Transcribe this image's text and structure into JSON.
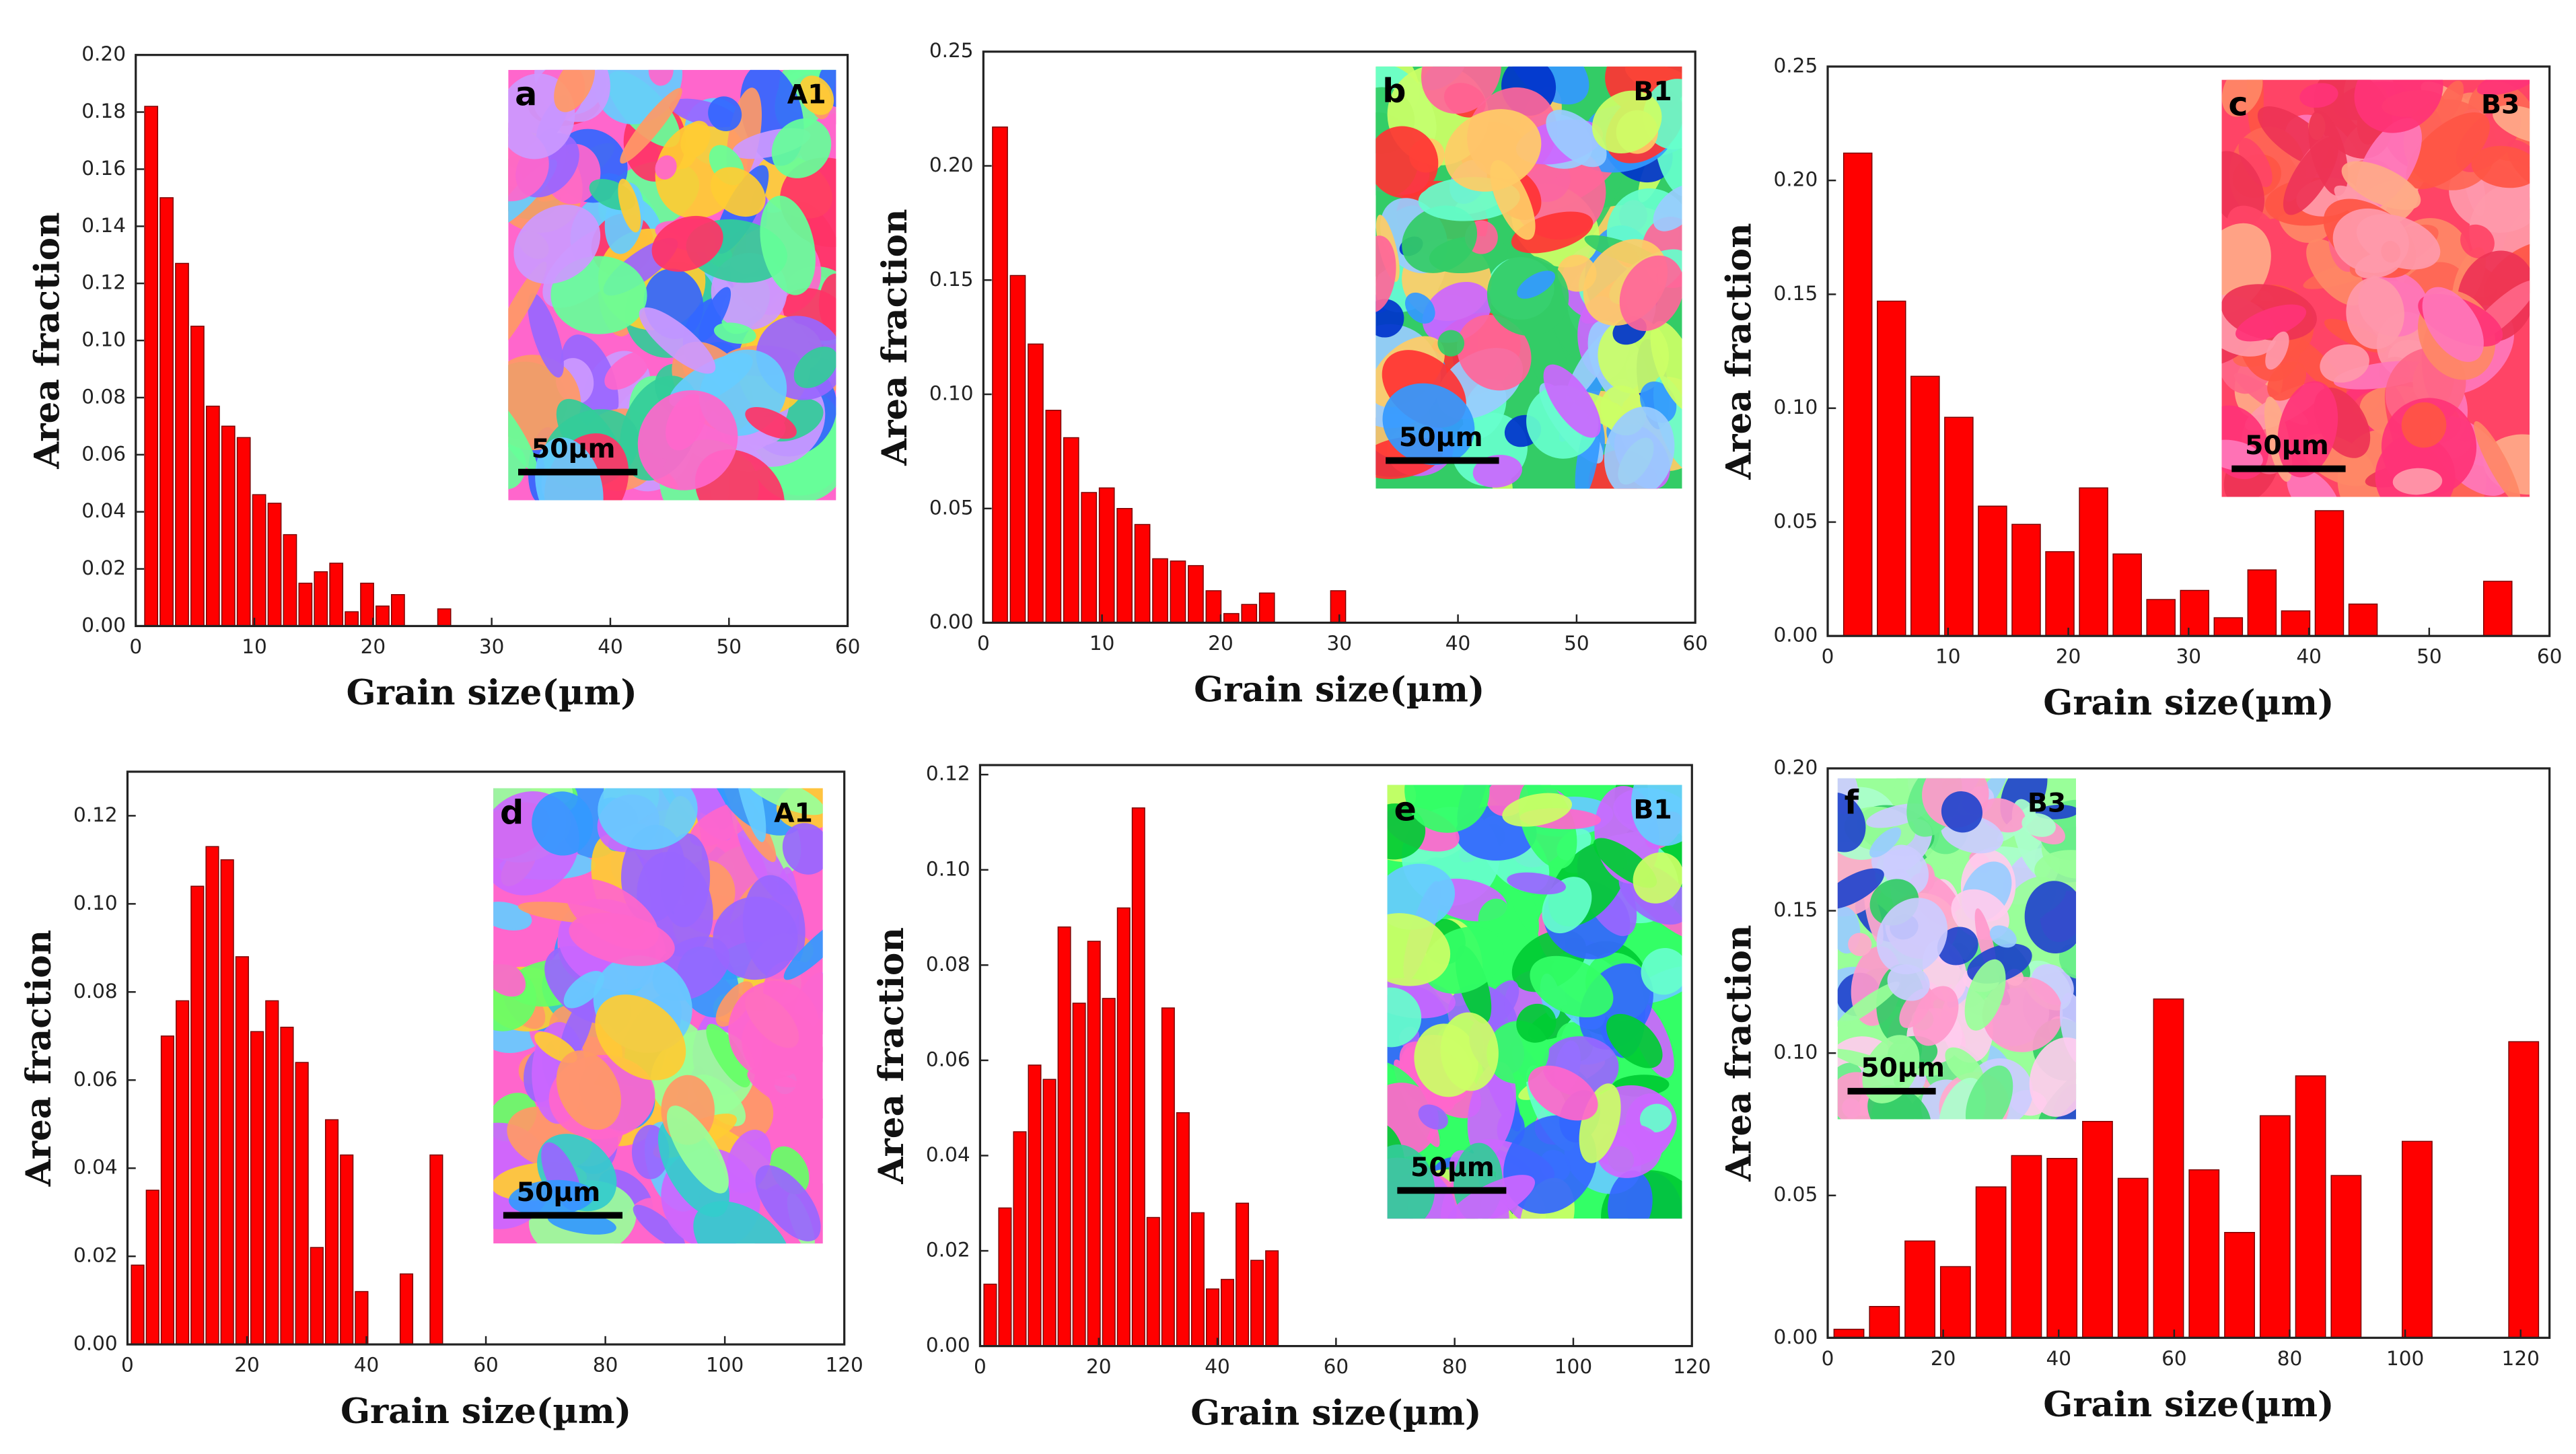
{
  "chart_data": [
    {
      "type": "histogram",
      "panel": "a",
      "inset_label": "A1",
      "scale_bar": "50µm",
      "xlabel": "Grain size(µm)",
      "ylabel": "Area fraction",
      "color": "#ff0000",
      "bins": [
        0.65,
        1.95,
        3.25,
        4.55,
        5.85,
        7.15,
        8.45,
        9.75,
        11.05,
        12.35,
        13.65,
        14.95,
        16.25,
        17.55,
        18.85,
        20.15,
        21.45,
        22.75,
        24.05,
        25.35,
        26.65
      ],
      "values": [
        0.182,
        0.15,
        0.127,
        0.105,
        0.077,
        0.07,
        0.066,
        0.046,
        0.043,
        0.032,
        0.015,
        0.019,
        0.022,
        0.005,
        0.015,
        0.007,
        0.011,
        0,
        0,
        0.006
      ],
      "xlim": [
        0,
        60
      ],
      "ylim": [
        0,
        0.2
      ],
      "xticks": [
        0,
        10,
        20,
        30,
        40,
        50,
        60
      ],
      "yticks": [
        {
          "value": 0,
          "label": "0.00"
        },
        0.02,
        0.04,
        0.06,
        0.08,
        {
          "value": 0.1,
          "label": "0.10"
        },
        0.12,
        0.14,
        0.16,
        0.18,
        {
          "value": 0.2,
          "label": "0.20"
        }
      ]
    },
    {
      "type": "histogram",
      "panel": "b",
      "inset_label": "B1",
      "scale_bar": "50µm",
      "xlabel": "Grain size(µm)",
      "ylabel": "Area fraction",
      "color": "#ff0000",
      "bins": [
        0.65,
        2.15,
        3.65,
        5.15,
        6.65,
        8.15,
        9.65,
        11.15,
        12.65,
        14.15,
        15.65,
        17.15,
        18.65,
        20.15,
        21.65,
        23.15,
        24.65,
        26.15,
        27.65,
        29.15,
        30.65
      ],
      "values": [
        0.217,
        0.152,
        0.122,
        0.093,
        0.081,
        0.057,
        0.059,
        0.05,
        0.043,
        0.028,
        0.027,
        0.025,
        0.014,
        0.004,
        0.008,
        0.013,
        0,
        0,
        0,
        0.014
      ],
      "xlim": [
        0,
        60
      ],
      "ylim": [
        0,
        0.25
      ],
      "xticks": [
        0,
        10,
        20,
        30,
        40,
        50,
        60
      ],
      "yticks": [
        {
          "value": 0,
          "label": "0.00"
        },
        0.05,
        {
          "value": 0.1,
          "label": "0.10"
        },
        0.15,
        {
          "value": 0.2,
          "label": "0.20"
        },
        0.25
      ]
    },
    {
      "type": "histogram",
      "panel": "c",
      "inset_label": "B3",
      "scale_bar": "50µm",
      "xlabel": "Grain size(µm)",
      "ylabel": "Area fraction",
      "color": "#ff0000",
      "bins": [
        1.1,
        3.9,
        6.7,
        9.5,
        12.3,
        15.1,
        17.9,
        20.7,
        23.5,
        26.3,
        29.1,
        31.9,
        34.7,
        37.5,
        40.3,
        43.1,
        45.9,
        48.7,
        51.5,
        54.3,
        57.1
      ],
      "values": [
        0.212,
        0.147,
        0.114,
        0.096,
        0.057,
        0.049,
        0.037,
        0.065,
        0.036,
        0.016,
        0.02,
        0.008,
        0.029,
        0.011,
        0.055,
        0.014,
        0,
        0,
        0,
        0.024
      ],
      "xlim": [
        0,
        60
      ],
      "ylim": [
        0,
        0.25
      ],
      "xticks": [
        0,
        10,
        20,
        30,
        40,
        50,
        60
      ],
      "yticks": [
        {
          "value": 0,
          "label": "0.00"
        },
        0.05,
        {
          "value": 0.1,
          "label": "0.10"
        },
        0.15,
        {
          "value": 0.2,
          "label": "0.20"
        },
        0.25
      ]
    },
    {
      "type": "histogram",
      "panel": "d",
      "inset_label": "A1",
      "scale_bar": "50µm",
      "xlabel": "Grain size(µm)",
      "ylabel": "Area fraction",
      "color": "#ff0000",
      "bins": [
        0.45,
        2.95,
        5.45,
        7.95,
        10.45,
        12.95,
        15.45,
        17.95,
        20.45,
        22.95,
        25.45,
        27.95,
        30.45,
        32.95,
        35.45,
        37.95,
        40.45,
        42.95,
        45.45,
        47.95,
        50.45,
        52.95
      ],
      "values": [
        0.018,
        0.035,
        0.07,
        0.078,
        0.104,
        0.113,
        0.11,
        0.088,
        0.071,
        0.078,
        0.072,
        0.064,
        0.022,
        0.051,
        0.043,
        0.012,
        0,
        0,
        0.016,
        0,
        0.043
      ],
      "xlim": [
        0,
        120
      ],
      "ylim": [
        0,
        0.13
      ],
      "xticks": [
        0,
        20,
        40,
        60,
        80,
        100,
        120
      ],
      "yticks": [
        {
          "value": 0,
          "label": "0.00"
        },
        0.02,
        0.04,
        0.06,
        0.08,
        {
          "value": 0.1,
          "label": "0.10"
        },
        0.12
      ]
    },
    {
      "type": "histogram",
      "panel": "e",
      "inset_label": "B1",
      "scale_bar": "50µm",
      "xlabel": "Grain size(µm)",
      "ylabel": "Area fraction",
      "color": "#ff0000",
      "bins": [
        0.45,
        2.95,
        5.45,
        7.95,
        10.45,
        12.95,
        15.45,
        17.95,
        20.45,
        22.95,
        25.45,
        27.95,
        30.45,
        32.95,
        35.45,
        37.95,
        40.45,
        42.95,
        45.45,
        47.95,
        50.45
      ],
      "values": [
        0.013,
        0.029,
        0.045,
        0.059,
        0.056,
        0.088,
        0.072,
        0.085,
        0.073,
        0.092,
        0.113,
        0.027,
        0.071,
        0.049,
        0.028,
        0.012,
        0.014,
        0.03,
        0.018,
        0.02
      ],
      "xlim": [
        0,
        120
      ],
      "ylim": [
        0,
        0.122
      ],
      "xticks": [
        0,
        20,
        40,
        60,
        80,
        100,
        120
      ],
      "yticks": [
        {
          "value": 0,
          "label": "0.00"
        },
        0.02,
        0.04,
        0.06,
        0.08,
        {
          "value": 0.1,
          "label": "0.10"
        },
        0.12
      ]
    },
    {
      "type": "histogram",
      "panel": "f",
      "inset_label": "B3",
      "scale_bar": "50µm",
      "xlabel": "Grain size(µm)",
      "ylabel": "Area fraction",
      "color": "#ff0000",
      "bins": [
        0.6,
        6.75,
        12.9,
        19.05,
        25.2,
        31.35,
        37.5,
        43.65,
        49.8,
        55.95,
        62.1,
        68.25,
        74.4,
        80.55,
        86.7,
        92.85,
        99,
        105.15,
        111.3,
        117.45,
        123.6
      ],
      "values": [
        0.003,
        0.011,
        0.034,
        0.025,
        0.053,
        0.064,
        0.063,
        0.076,
        0.056,
        0.119,
        0.059,
        0.037,
        0.078,
        0.092,
        0.057,
        0,
        0.069,
        0,
        0,
        0.104
      ],
      "xlim": [
        0,
        125
      ],
      "ylim": [
        0,
        0.2
      ],
      "xticks": [
        0,
        20,
        40,
        60,
        80,
        100,
        120
      ],
      "yticks": [
        {
          "value": 0,
          "label": "0.00"
        },
        0.05,
        {
          "value": 0.1,
          "label": "0.10"
        },
        0.15,
        {
          "value": 0.2,
          "label": "0.20"
        }
      ]
    }
  ]
}
